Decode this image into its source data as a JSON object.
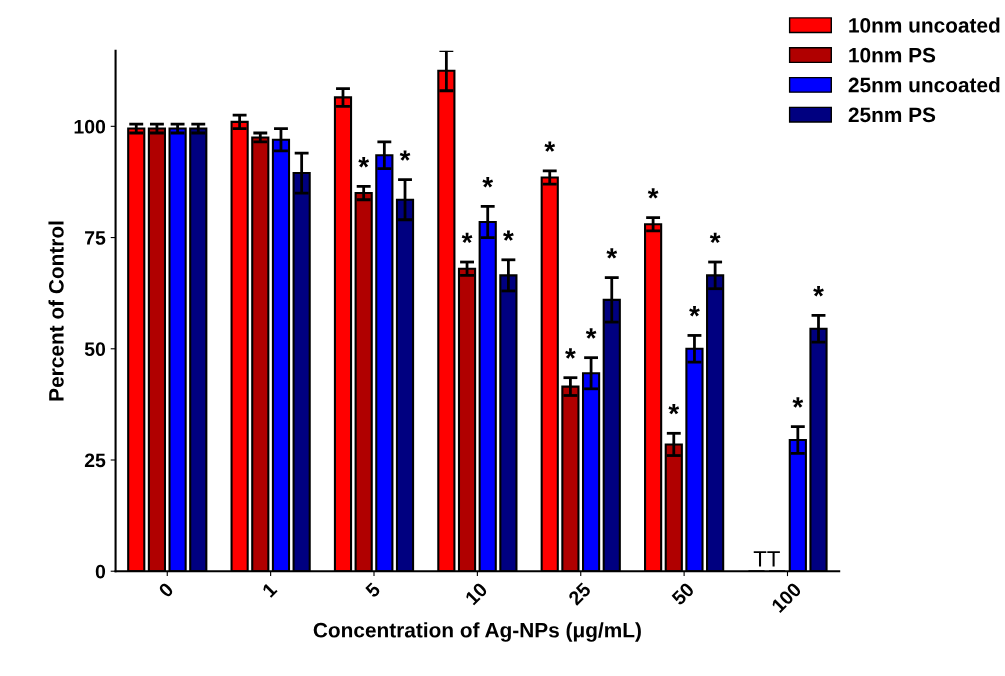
{
  "chart_data": {
    "type": "bar",
    "xlabel": "Concentration of Ag-NPs (μg/mL)",
    "ylabel": "Percent of Control",
    "categories": [
      "0",
      "1",
      "5",
      "10",
      "25",
      "50",
      "100"
    ],
    "series": [
      {
        "name": "10nm uncoated",
        "color": "#ff0000",
        "values": [
          99.5,
          101,
          106.5,
          112.5,
          88.5,
          78,
          0
        ],
        "errors": [
          1,
          1.5,
          2,
          4.5,
          1.5,
          1.5,
          null
        ],
        "value_labels": [
          null,
          null,
          null,
          null,
          "*",
          "*",
          null
        ]
      },
      {
        "name": "10nm PS",
        "color": "#b00000",
        "values": [
          99.5,
          97.5,
          85,
          68,
          41.5,
          28.5,
          0
        ],
        "errors": [
          1,
          1,
          1.5,
          1.5,
          2,
          2.5,
          null
        ],
        "value_labels": [
          null,
          null,
          "*",
          "*",
          "*",
          "*",
          null
        ]
      },
      {
        "name": "25nm uncoated",
        "color": "#0000ff",
        "values": [
          99.5,
          97,
          93.5,
          78.5,
          44.5,
          50,
          29.5
        ],
        "errors": [
          1,
          2.5,
          3,
          3.5,
          3.5,
          3,
          3
        ],
        "value_labels": [
          null,
          null,
          null,
          "*",
          "*",
          "*",
          "*"
        ]
      },
      {
        "name": "25nm PS",
        "color": "#000080",
        "values": [
          99.5,
          89.5,
          83.5,
          66.5,
          61,
          66.5,
          54.5
        ],
        "errors": [
          1,
          4.5,
          4.5,
          3.5,
          5,
          3,
          3
        ],
        "value_labels": [
          null,
          null,
          "*",
          "*",
          "*",
          "*",
          "*"
        ]
      }
    ],
    "annotations": [
      {
        "text": "TT",
        "x": "100",
        "y": 0
      }
    ],
    "ylim": [
      0,
      117
    ],
    "yticks": [
      0,
      25,
      50,
      75,
      100
    ],
    "grid": false,
    "legend": "top right"
  }
}
